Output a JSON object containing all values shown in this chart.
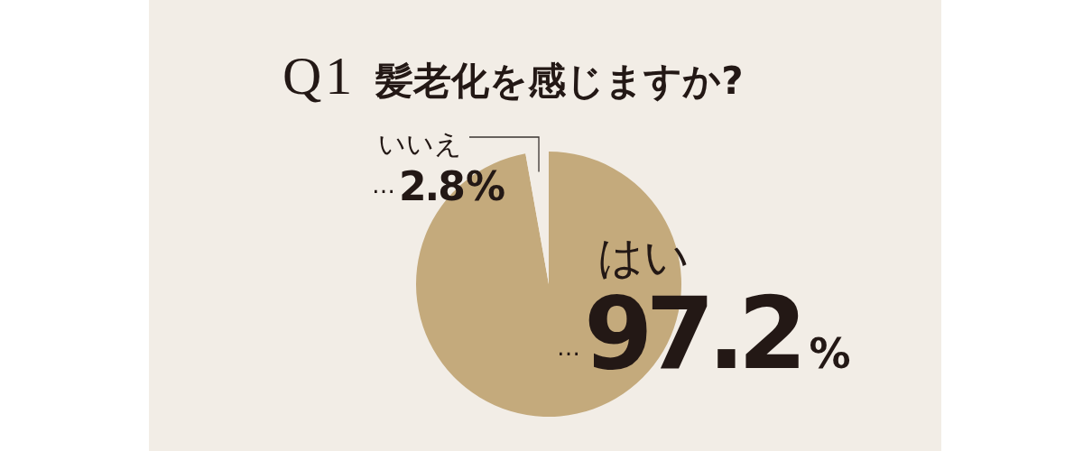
{
  "chart_data": {
    "type": "pie",
    "title": "Q1 髪老化を感じますか?",
    "categories": [
      "はい",
      "いいえ"
    ],
    "values": [
      97.2,
      2.8
    ],
    "colors": [
      "#c4aa7c",
      "#f2ede6"
    ],
    "value_labels": [
      "…97.2%",
      "…2.8%"
    ]
  }
}
